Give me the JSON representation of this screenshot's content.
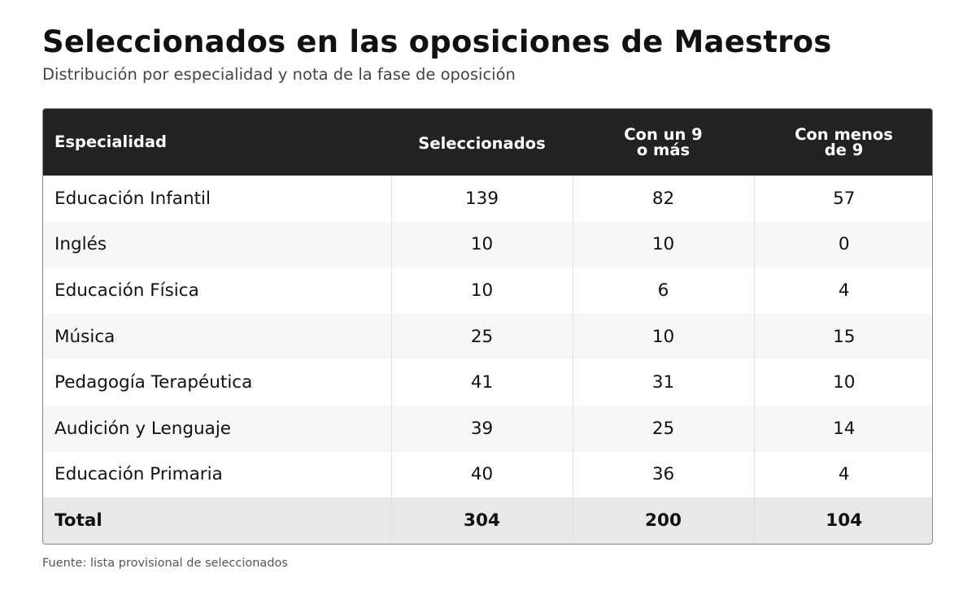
{
  "title": "Seleccionados en las oposiciones de Maestros",
  "subtitle": "Distribución por especialidad y nota de la fase de oposición",
  "source": "Fuente: lista provisional de seleccionados",
  "colors": {
    "header_bg": "#222222",
    "header_text": "#ffffff",
    "row_alt_bg": "#f7f7f7",
    "total_bg": "#e8e8e8"
  },
  "chart_data": {
    "type": "table",
    "columns": [
      {
        "lines": [
          "Especialidad"
        ]
      },
      {
        "lines": [
          "Seleccionados"
        ]
      },
      {
        "lines": [
          "Con un 9",
          "o más"
        ]
      },
      {
        "lines": [
          "Con menos",
          "de 9"
        ]
      }
    ],
    "rows": [
      {
        "especialidad": "Educación Infantil",
        "seleccionados": 139,
        "nueve_o_mas": 82,
        "menos_de_nueve": 57
      },
      {
        "especialidad": "Inglés",
        "seleccionados": 10,
        "nueve_o_mas": 10,
        "menos_de_nueve": 0
      },
      {
        "especialidad": "Educación Física",
        "seleccionados": 10,
        "nueve_o_mas": 6,
        "menos_de_nueve": 4
      },
      {
        "especialidad": "Música",
        "seleccionados": 25,
        "nueve_o_mas": 10,
        "menos_de_nueve": 15
      },
      {
        "especialidad": "Pedagogía Terapéutica",
        "seleccionados": 41,
        "nueve_o_mas": 31,
        "menos_de_nueve": 10
      },
      {
        "especialidad": "Audición y Lenguaje",
        "seleccionados": 39,
        "nueve_o_mas": 25,
        "menos_de_nueve": 14
      },
      {
        "especialidad": "Educación Primaria",
        "seleccionados": 40,
        "nueve_o_mas": 36,
        "menos_de_nueve": 4
      }
    ],
    "total": {
      "especialidad": "Total",
      "seleccionados": 304,
      "nueve_o_mas": 200,
      "menos_de_nueve": 104
    }
  }
}
